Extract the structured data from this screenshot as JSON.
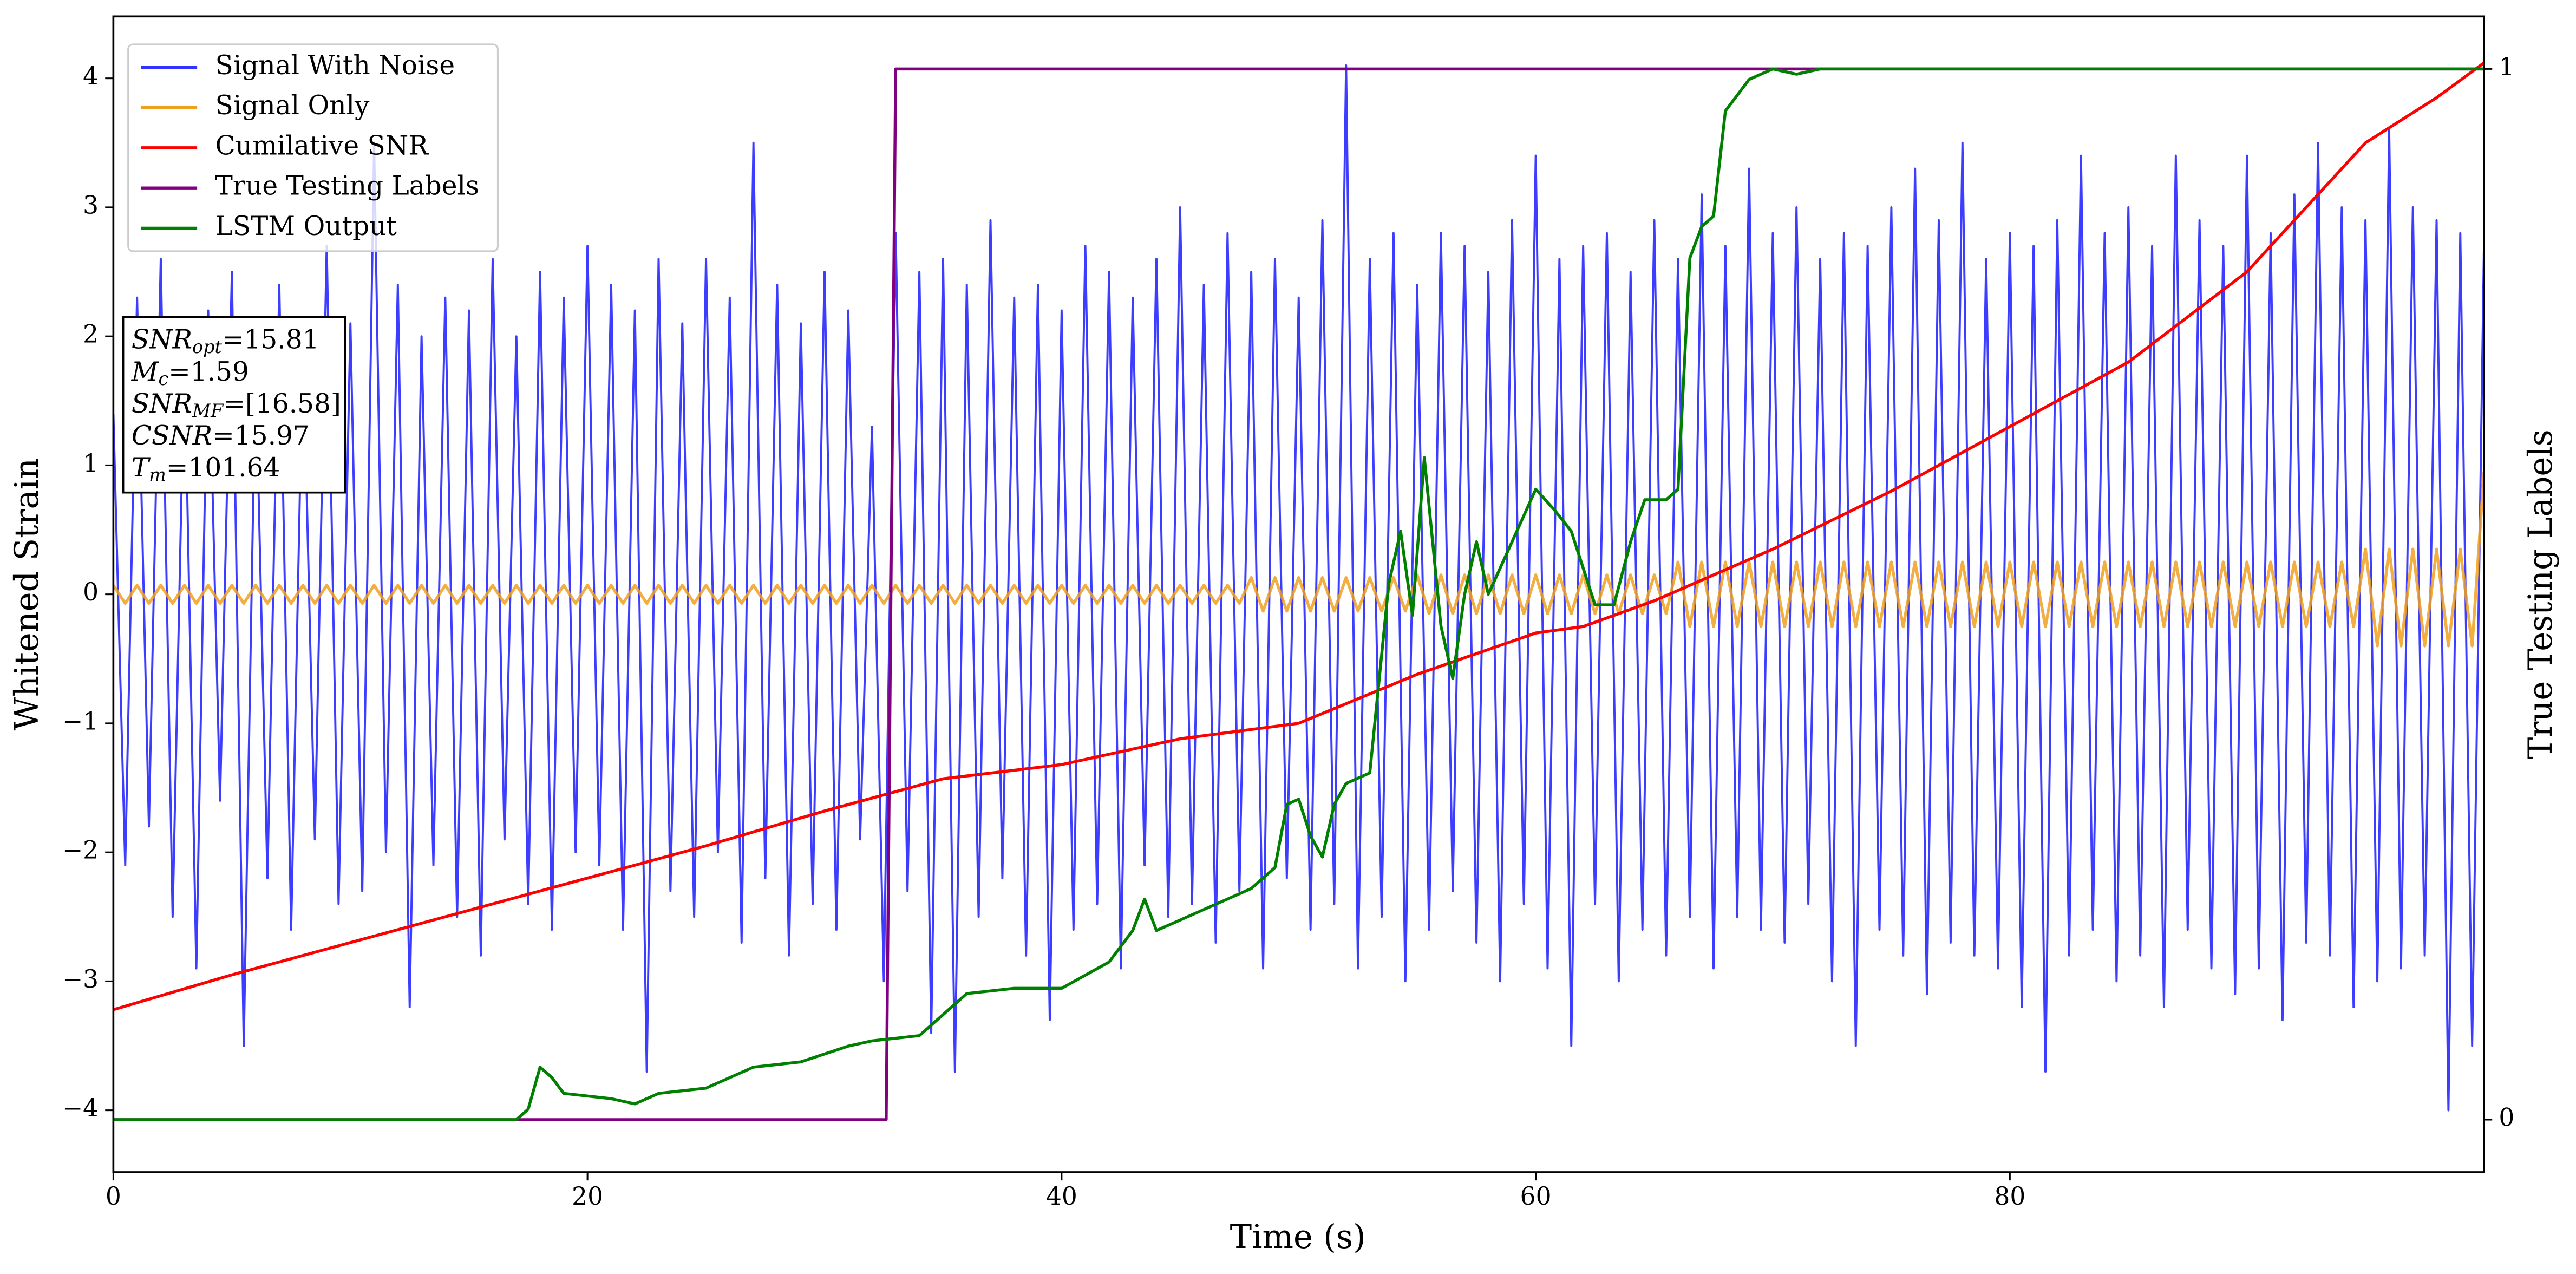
{
  "chart_data": {
    "type": "line",
    "x_label": "Time (s)",
    "y_label": "Whitened Strain",
    "y2_label": "True Testing Labels",
    "xlim": [
      0,
      100
    ],
    "ylim": [
      -4.48,
      4.48
    ],
    "y2lim": [
      -0.05,
      1.05
    ],
    "xticks": [
      0,
      20,
      40,
      60,
      80
    ],
    "yticks": [
      -4,
      -3,
      -2,
      -1,
      0,
      1,
      2,
      3,
      4
    ],
    "y2ticks": [
      0,
      1
    ],
    "legend": "upper left",
    "x": [
      0,
      0.5,
      1,
      1.5,
      2,
      2.5,
      3,
      3.5,
      4,
      4.5,
      5,
      5.5,
      6,
      6.5,
      7,
      7.5,
      8,
      8.5,
      9,
      9.5,
      10,
      10.5,
      11,
      11.5,
      12,
      12.5,
      13,
      13.5,
      14,
      14.5,
      15,
      15.5,
      16,
      16.5,
      17,
      17.5,
      18,
      18.5,
      19,
      19.5,
      20,
      20.5,
      21,
      21.5,
      22,
      22.5,
      23,
      23.5,
      24,
      24.5,
      25,
      25.5,
      26,
      26.5,
      27,
      27.5,
      28,
      28.5,
      29,
      29.5,
      30,
      30.5,
      31,
      31.5,
      32,
      32.5,
      33,
      33.5,
      34,
      34.5,
      35,
      35.5,
      36,
      36.5,
      37,
      37.5,
      38,
      38.5,
      39,
      39.5,
      40,
      40.5,
      41,
      41.5,
      42,
      42.5,
      43,
      43.5,
      44,
      44.5,
      45,
      45.5,
      46,
      46.5,
      47,
      47.5,
      48,
      48.5,
      49,
      49.5,
      50,
      50.5,
      51,
      51.5,
      52,
      52.5,
      53,
      53.5,
      54,
      54.5,
      55,
      55.5,
      56,
      56.5,
      57,
      57.5,
      58,
      58.5,
      59,
      59.5,
      60,
      60.5,
      61,
      61.5,
      62,
      62.5,
      63,
      63.5,
      64,
      64.5,
      65,
      65.5,
      66,
      66.5,
      67,
      67.5,
      68,
      68.5,
      69,
      69.5,
      70,
      70.5,
      71,
      71.5,
      72,
      72.5,
      73,
      73.5,
      74,
      74.5,
      75,
      75.5,
      76,
      76.5,
      77,
      77.5,
      78,
      78.5,
      79,
      79.5,
      80,
      80.5,
      81,
      81.5,
      82,
      82.5,
      83,
      83.5,
      84,
      84.5,
      85,
      85.5,
      86,
      86.5,
      87,
      87.5,
      88,
      88.5,
      89,
      89.5,
      90,
      90.5,
      91,
      91.5,
      92,
      92.5,
      93,
      93.5,
      94,
      94.5,
      95,
      95.5,
      96,
      96.5,
      97,
      97.5,
      98,
      98.5,
      99,
      99.5,
      100
    ],
    "series": [
      {
        "name": "Signal With Noise",
        "color": "#3333ff",
        "values": [
          1.4,
          -2.1,
          2.3,
          -1.8,
          2.6,
          -2.5,
          1.9,
          -2.9,
          2.2,
          -1.6,
          2.5,
          -3.5,
          1.8,
          -2.2,
          2.4,
          -2.6,
          2.0,
          -1.9,
          2.7,
          -2.4,
          2.1,
          -2.3,
          3.5,
          -2.0,
          2.4,
          -3.2,
          2.0,
          -2.1,
          2.3,
          -2.5,
          2.2,
          -2.8,
          2.6,
          -1.9,
          2.0,
          -2.4,
          2.5,
          -2.6,
          2.3,
          -2.0,
          2.7,
          -2.1,
          2.4,
          -2.6,
          2.2,
          -3.7,
          2.6,
          -2.3,
          2.1,
          -2.5,
          2.6,
          -2.0,
          2.3,
          -2.7,
          3.5,
          -2.2,
          2.4,
          -2.8,
          2.1,
          -2.4,
          2.5,
          -2.6,
          2.2,
          -1.9,
          1.3,
          -3.0,
          2.8,
          -2.3,
          2.5,
          -3.4,
          2.6,
          -3.7,
          2.4,
          -2.5,
          2.9,
          -2.2,
          2.3,
          -2.8,
          2.4,
          -3.3,
          2.2,
          -2.6,
          2.7,
          -2.4,
          2.5,
          -2.9,
          2.3,
          -2.1,
          2.6,
          -2.5,
          3.0,
          -2.4,
          2.4,
          -2.7,
          2.8,
          -2.3,
          2.5,
          -2.9,
          2.6,
          -2.2,
          2.3,
          -2.6,
          2.9,
          -2.4,
          4.1,
          -2.9,
          2.6,
          -2.5,
          2.8,
          -3.0,
          2.4,
          -2.6,
          2.8,
          -2.3,
          2.7,
          -2.7,
          2.5,
          -3.0,
          2.9,
          -2.4,
          3.4,
          -2.9,
          2.6,
          -3.5,
          2.7,
          -2.4,
          2.8,
          -3.0,
          2.5,
          -2.6,
          2.9,
          -2.8,
          2.6,
          -2.5,
          3.1,
          -2.9,
          2.7,
          -2.5,
          3.3,
          -2.6,
          2.8,
          -2.7,
          3.0,
          -2.4,
          2.6,
          -3.0,
          2.8,
          -3.5,
          2.7,
          -2.6,
          3.0,
          -2.8,
          3.3,
          -3.1,
          2.9,
          -2.7,
          3.5,
          -2.8,
          2.6,
          -2.9,
          2.8,
          -3.2,
          2.7,
          -3.7,
          2.9,
          -2.8,
          3.4,
          -2.6,
          2.8,
          -3.0,
          3.0,
          -2.8,
          2.7,
          -3.2,
          3.4,
          -2.6,
          2.9,
          -2.9,
          2.7,
          -3.1,
          3.4,
          -2.9,
          2.8,
          -3.3,
          3.1,
          -2.7,
          3.5,
          -2.8,
          3.0,
          -3.2,
          2.9,
          -3.0,
          3.6,
          -2.9,
          3.0,
          -2.8,
          2.9,
          -4.0,
          2.8,
          -3.5,
          2.7
        ]
      },
      {
        "name": "Signal Only",
        "color": "#f0a020",
        "values": [
          0.07,
          -0.07,
          0.07,
          -0.07,
          0.07,
          -0.07,
          0.07,
          -0.07,
          0.07,
          -0.07,
          0.07,
          -0.07,
          0.07,
          -0.07,
          0.07,
          -0.07,
          0.07,
          -0.07,
          0.07,
          -0.07,
          0.07,
          -0.07,
          0.07,
          -0.07,
          0.07,
          -0.07,
          0.07,
          -0.07,
          0.07,
          -0.07,
          0.07,
          -0.07,
          0.07,
          -0.07,
          0.07,
          -0.07,
          0.07,
          -0.07,
          0.07,
          -0.07,
          0.07,
          -0.07,
          0.07,
          -0.07,
          0.07,
          -0.07,
          0.07,
          -0.07,
          0.07,
          -0.07,
          0.07,
          -0.07,
          0.07,
          -0.07,
          0.07,
          -0.07,
          0.07,
          -0.07,
          0.07,
          -0.07,
          0.07,
          -0.07,
          0.07,
          -0.07,
          0.07,
          -0.07,
          0.07,
          -0.07,
          0.07,
          -0.07,
          0.07,
          -0.07,
          0.07,
          -0.07,
          0.07,
          -0.07,
          0.07,
          -0.07,
          0.07,
          -0.07,
          0.07,
          -0.07,
          0.07,
          -0.07,
          0.07,
          -0.07,
          0.07,
          -0.07,
          0.07,
          -0.07,
          0.07,
          -0.07,
          0.07,
          -0.07,
          0.07,
          -0.07,
          0.13,
          -0.13,
          0.13,
          -0.13,
          0.13,
          -0.13,
          0.13,
          -0.13,
          0.13,
          -0.13,
          0.13,
          -0.13,
          0.13,
          -0.13,
          0.15,
          -0.15,
          0.15,
          -0.15,
          0.15,
          -0.15,
          0.15,
          -0.15,
          0.15,
          -0.15,
          0.15,
          -0.15,
          0.15,
          -0.15,
          0.15,
          -0.15,
          0.15,
          -0.15,
          0.15,
          -0.15,
          0.15,
          -0.15,
          0.25,
          -0.25,
          0.25,
          -0.25,
          0.25,
          -0.25,
          0.25,
          -0.25,
          0.25,
          -0.25,
          0.25,
          -0.25,
          0.25,
          -0.25,
          0.25,
          -0.25,
          0.25,
          -0.25,
          0.25,
          -0.25,
          0.25,
          -0.25,
          0.25,
          -0.25,
          0.25,
          -0.25,
          0.25,
          -0.25,
          0.25,
          -0.25,
          0.25,
          -0.25,
          0.25,
          -0.25,
          0.25,
          -0.25,
          0.25,
          -0.25,
          0.25,
          -0.25,
          0.25,
          -0.25,
          0.25,
          -0.25,
          0.25,
          -0.25,
          0.25,
          -0.25,
          0.25,
          -0.25,
          0.25,
          -0.25,
          0.25,
          -0.25,
          0.25,
          -0.25,
          0.25,
          -0.25,
          0.35,
          -0.4,
          0.35,
          -0.4,
          0.35,
          -0.4,
          0.35,
          -0.4,
          0.35,
          -0.4,
          0.95
        ]
      },
      {
        "name": "Cumilative SNR",
        "color": "#ff0000",
        "x": [
          0,
          5,
          10,
          15,
          20,
          25,
          30,
          35,
          40,
          45,
          50,
          55,
          60,
          62,
          65,
          70,
          75,
          80,
          85,
          90,
          95,
          98,
          100
        ],
        "values": [
          -3.22,
          -2.95,
          -2.7,
          -2.45,
          -2.2,
          -1.95,
          -1.68,
          -1.43,
          -1.32,
          -1.12,
          -1.0,
          -0.62,
          -0.3,
          -0.25,
          -0.05,
          0.35,
          0.8,
          1.3,
          1.8,
          2.5,
          3.5,
          3.85,
          4.12
        ]
      },
      {
        "name": "True Testing Labels",
        "color": "#800080",
        "axis": "y2",
        "x": [
          0,
          32.6,
          33.0,
          100
        ],
        "values": [
          0,
          0,
          1,
          1
        ]
      },
      {
        "name": "LSTM Output",
        "color": "#008000",
        "axis": "y2",
        "x": [
          0,
          17,
          17.5,
          18,
          18.5,
          19,
          21,
          22,
          23,
          25,
          27,
          29,
          31,
          32,
          34,
          35,
          36,
          38,
          40,
          42,
          43,
          43.5,
          44,
          45,
          47,
          48,
          49,
          49.5,
          50,
          50.5,
          51,
          51.5,
          52,
          53,
          53.8,
          54.3,
          54.8,
          55.3,
          56,
          56.5,
          57,
          57.5,
          58,
          59,
          60,
          60.8,
          61.5,
          62.5,
          63.3,
          64,
          64.6,
          65.5,
          66,
          66.5,
          67,
          67.5,
          68,
          69,
          70,
          71,
          72,
          73,
          100
        ],
        "values": [
          0,
          0,
          0.01,
          0.05,
          0.04,
          0.025,
          0.02,
          0.015,
          0.025,
          0.03,
          0.05,
          0.055,
          0.07,
          0.075,
          0.08,
          0.1,
          0.12,
          0.125,
          0.125,
          0.15,
          0.18,
          0.21,
          0.18,
          0.19,
          0.21,
          0.22,
          0.24,
          0.3,
          0.305,
          0.27,
          0.25,
          0.3,
          0.32,
          0.33,
          0.51,
          0.56,
          0.48,
          0.63,
          0.47,
          0.42,
          0.5,
          0.55,
          0.5,
          0.55,
          0.6,
          0.58,
          0.56,
          0.49,
          0.49,
          0.55,
          0.59,
          0.59,
          0.6,
          0.82,
          0.85,
          0.86,
          0.96,
          0.99,
          1.0,
          0.995,
          1.0,
          1.0,
          1.0
        ]
      }
    ],
    "annotation_lines": [
      {
        "symbol": "SNR",
        "subscript": "opt",
        "text": "=15.81"
      },
      {
        "symbol": "M",
        "subscript": "c",
        "text": "=1.59"
      },
      {
        "symbol": "SNR",
        "subscript": "MF",
        "text": "=[16.58]"
      },
      {
        "symbol": "CSNR",
        "text": "=15.97"
      },
      {
        "symbol": "T",
        "subscript": "m",
        "text": "=101.64"
      }
    ]
  }
}
